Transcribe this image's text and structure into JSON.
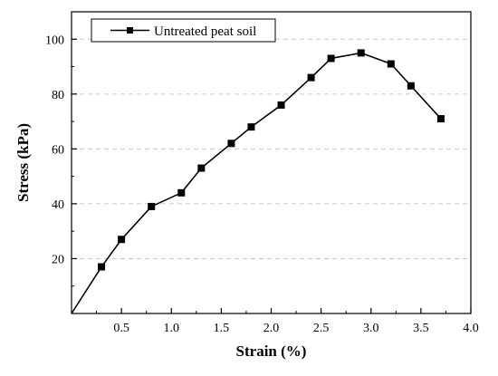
{
  "chart_data": {
    "type": "line",
    "title": "",
    "xlabel": "Strain (%)",
    "ylabel": "Stress (kPa)",
    "xlim": [
      0.0,
      4.0
    ],
    "ylim": [
      0,
      110
    ],
    "x_ticks": [
      0.5,
      1.0,
      1.5,
      2.0,
      2.5,
      3.0,
      3.5,
      4.0
    ],
    "x_tick_labels": [
      "0.5",
      "1.0",
      "1.5",
      "2.0",
      "2.5",
      "3.0",
      "3.5",
      "4.0"
    ],
    "y_ticks": [
      20,
      40,
      60,
      80,
      100
    ],
    "y_tick_labels": [
      "20",
      "40",
      "60",
      "80",
      "100"
    ],
    "grid": "horizontal dashed",
    "legend_position": "top-left",
    "series": [
      {
        "name": "Untreated peat soil",
        "color": "#000000",
        "marker": "square",
        "x": [
          0.0,
          0.3,
          0.5,
          0.8,
          1.1,
          1.3,
          1.6,
          1.8,
          2.1,
          2.4,
          2.6,
          2.9,
          3.2,
          3.4,
          3.7
        ],
        "y": [
          0,
          17,
          27,
          39,
          44,
          53,
          62,
          68,
          76,
          86,
          93,
          95,
          91,
          83,
          71
        ],
        "markers_shown": [
          false,
          true,
          true,
          true,
          true,
          true,
          true,
          true,
          true,
          true,
          true,
          true,
          true,
          true,
          true
        ]
      }
    ]
  }
}
